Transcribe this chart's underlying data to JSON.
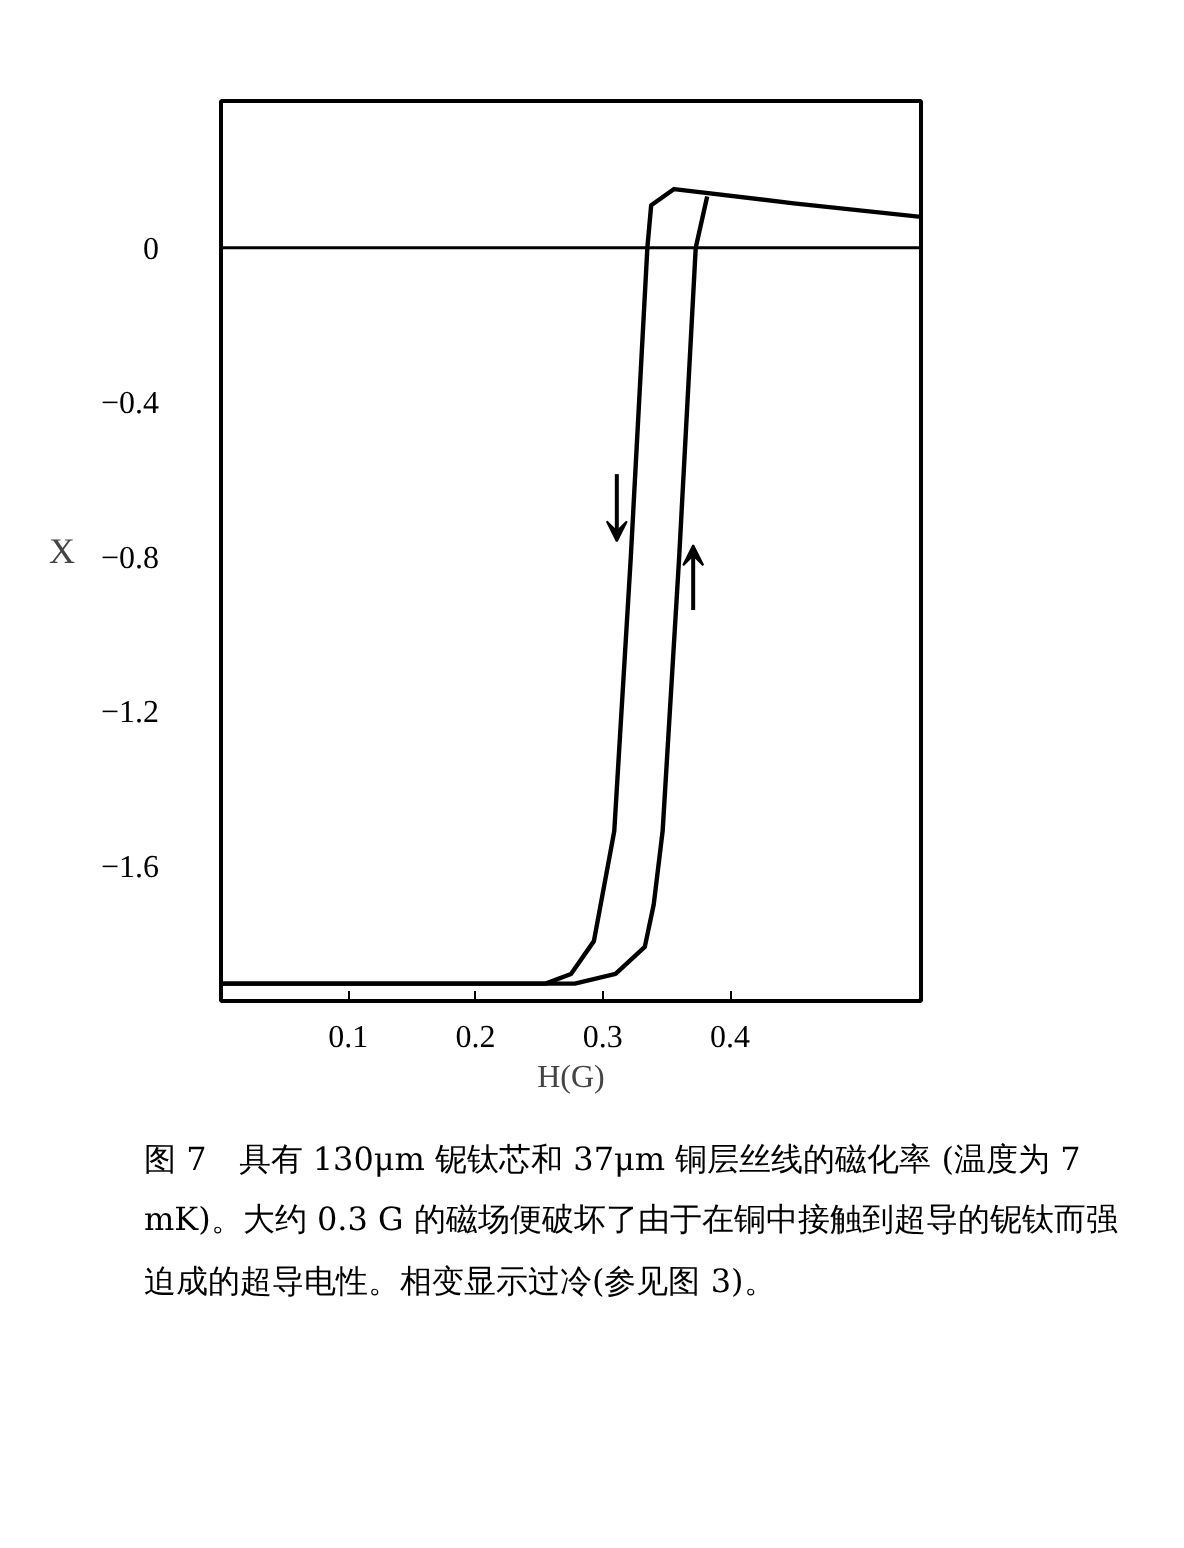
{
  "chart_data": {
    "type": "line",
    "xlabel": "H(G)",
    "ylabel": "X",
    "series": [
      {
        "color": "#000000",
        "x": [
          0.55,
          0.45,
          0.356,
          0.338,
          0.335,
          0.322,
          0.309,
          0.293,
          0.275,
          0.255,
          0
        ],
        "values": [
          0.08,
          0.115,
          0.152,
          0.11,
          0,
          -0.8,
          -1.51,
          -1.795,
          -1.88,
          -1.905,
          -1.905
        ]
      },
      {
        "color": "#000000",
        "x": [
          0,
          0.278,
          0.31,
          0.333,
          0.34,
          0.347,
          0.36,
          0.373,
          0.382
        ],
        "values": [
          -1.905,
          -1.905,
          -1.88,
          -1.81,
          -1.7,
          -1.51,
          -0.8,
          0,
          0.133
        ]
      }
    ],
    "xlim": [
      0,
      0.55
    ],
    "ylim": [
      -1.95,
      0.38
    ],
    "xticks": [
      0.1,
      0.2,
      0.3,
      0.4
    ],
    "yticks": [
      0,
      {
        "value": -0.4,
        "label": "−0.4"
      },
      {
        "value": -0.8,
        "label": "−0.8"
      },
      {
        "value": -1.2,
        "label": "−1.2"
      },
      {
        "value": -1.6,
        "label": "−1.6"
      }
    ],
    "ref_lines": [
      {
        "axis": "y",
        "value": 0,
        "label": null,
        "color": "#000000"
      }
    ],
    "grid": false,
    "marker": "none",
    "line_style": "solid",
    "annotations": [
      "图 7　具有 130μm 铌钛芯和 37μm 铜层丝线的磁化率 (温度为 7 mK)。大约 0.3 G 的磁场便破坏了由于在铜中接触到超导的铌钛而强迫成的超导电性。相变显示过冷(参见图 3)。"
    ]
  }
}
